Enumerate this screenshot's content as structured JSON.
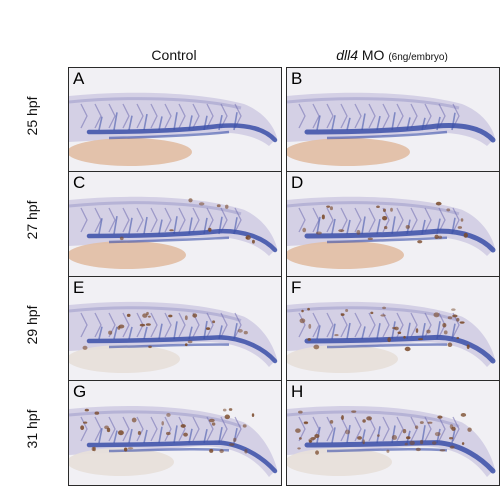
{
  "column_headers": {
    "control": "Control",
    "morpholino_gene": "dll4",
    "morpholino_suffix": " MO ",
    "morpholino_dose": "(6ng/embryo)"
  },
  "rows": [
    {
      "stage": "25 hpf",
      "left_panel": "A",
      "right_panel": "B"
    },
    {
      "stage": "27 hpf",
      "left_panel": "C",
      "right_panel": "D"
    },
    {
      "stage": "29 hpf",
      "left_panel": "E",
      "right_panel": "F"
    },
    {
      "stage": "31 hpf",
      "left_panel": "G",
      "right_panel": "H"
    }
  ],
  "colors": {
    "background": "#f1f0f4",
    "stain_blue": "#3a4fa8",
    "tissue_lavender": "#c9c6e0",
    "yolk": "#e2bfa6",
    "pigment_brown": "#7a4a2a"
  }
}
